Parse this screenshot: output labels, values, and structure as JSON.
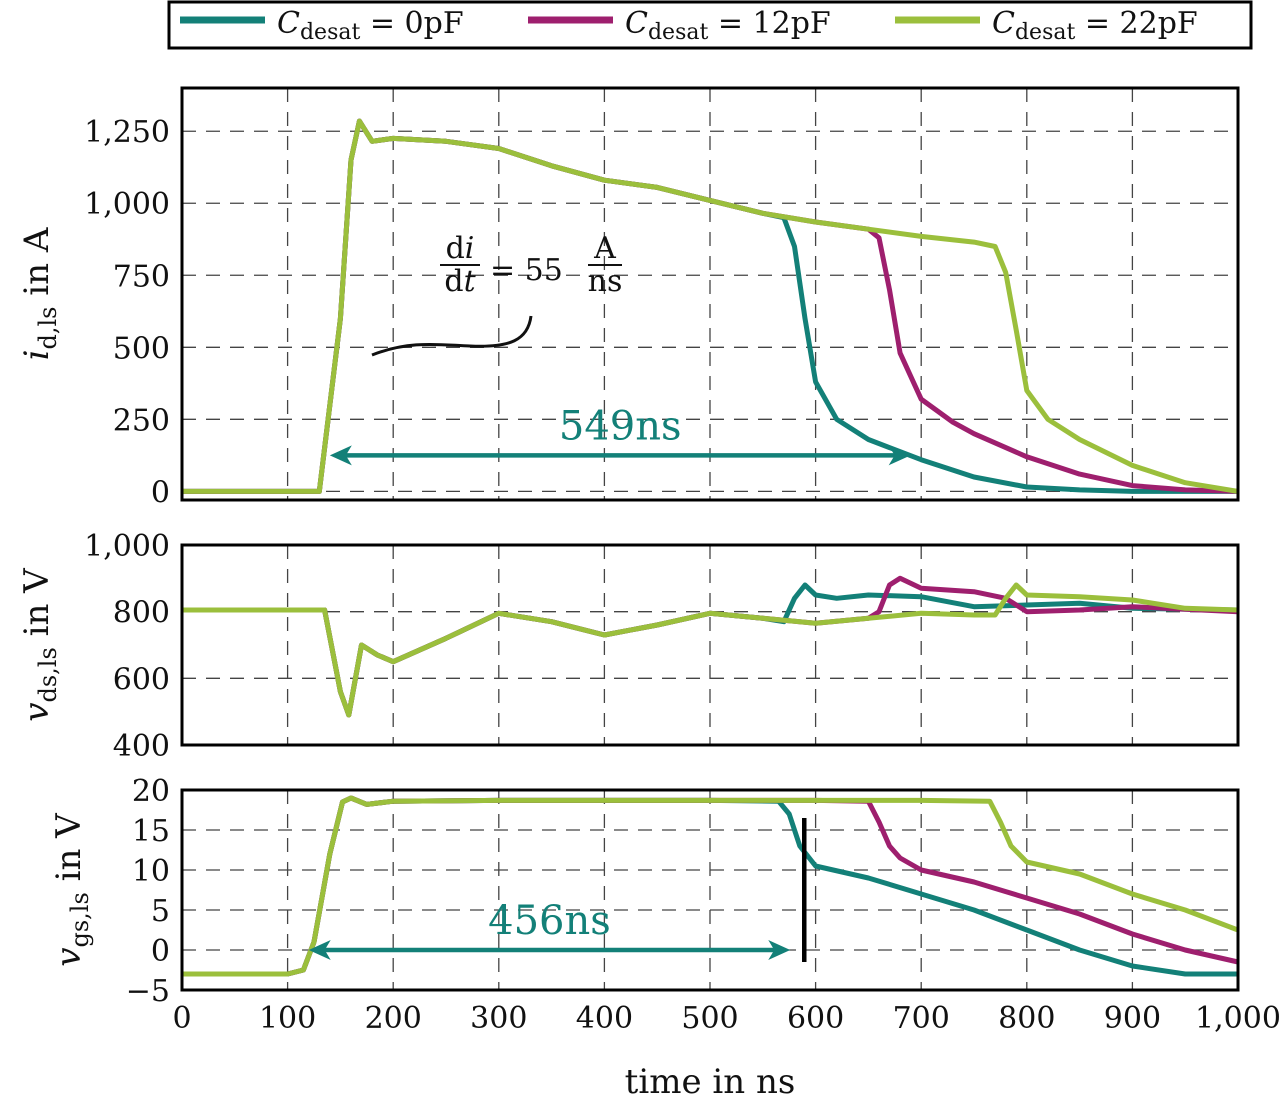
{
  "chart_data": {
    "type": "line",
    "legend": {
      "placement": "top",
      "entries": [
        {
          "label_main": "C",
          "label_sub": "desat",
          "label_rest": " = 0pF",
          "color": "#138078"
        },
        {
          "label_main": "C",
          "label_sub": "desat",
          "label_rest": " = 12pF",
          "color": "#9E1F6E"
        },
        {
          "label_main": "C",
          "label_sub": "desat",
          "label_rest": " = 22pF",
          "color": "#9BBF3C"
        }
      ]
    },
    "xlabel": "time in ns",
    "xlim": [
      0,
      1000
    ],
    "xticks": [
      0,
      100,
      200,
      300,
      400,
      500,
      600,
      700,
      800,
      900,
      1000
    ],
    "xtick_labels": [
      "0",
      "100",
      "200",
      "300",
      "400",
      "500",
      "600",
      "700",
      "800",
      "900",
      "1,000"
    ],
    "grid": true,
    "panels": [
      {
        "id": "id",
        "ylabel_main": "i",
        "ylabel_sub": "d,ls",
        "ylabel_rest": " in A",
        "ylim": [
          -30,
          1400
        ],
        "yticks": [
          0,
          250,
          500,
          750,
          1000,
          1250
        ],
        "ytick_labels": [
          "0",
          "250",
          "500",
          "750",
          "1,000",
          "1,250"
        ],
        "series": [
          {
            "name": "Cdesat = 0pF",
            "x": [
              0,
              100,
              130,
              150,
              160,
              168,
              180,
              200,
              250,
              300,
              350,
              400,
              450,
              500,
              550,
              570,
              580,
              590,
              600,
              620,
              650,
              700,
              750,
              800,
              850,
              900,
              1000
            ],
            "y": [
              0,
              0,
              0,
              600,
              1150,
              1285,
              1215,
              1225,
              1215,
              1190,
              1130,
              1080,
              1055,
              1010,
              965,
              950,
              850,
              600,
              380,
              250,
              180,
              110,
              50,
              15,
              5,
              0,
              0
            ]
          },
          {
            "name": "Cdesat = 12pF",
            "x": [
              0,
              100,
              130,
              150,
              160,
              168,
              180,
              200,
              250,
              300,
              350,
              400,
              450,
              500,
              550,
              600,
              650,
              660,
              670,
              680,
              700,
              730,
              750,
              800,
              850,
              900,
              950,
              1000
            ],
            "y": [
              0,
              0,
              0,
              600,
              1150,
              1285,
              1215,
              1225,
              1215,
              1190,
              1130,
              1080,
              1055,
              1010,
              965,
              935,
              910,
              880,
              700,
              480,
              320,
              240,
              200,
              120,
              60,
              20,
              5,
              0
            ]
          },
          {
            "name": "Cdesat = 22pF",
            "x": [
              0,
              100,
              130,
              150,
              160,
              168,
              180,
              200,
              250,
              300,
              350,
              400,
              450,
              500,
              550,
              600,
              650,
              700,
              750,
              770,
              780,
              790,
              800,
              820,
              850,
              900,
              950,
              1000
            ],
            "y": [
              0,
              0,
              0,
              600,
              1150,
              1285,
              1215,
              1225,
              1215,
              1190,
              1130,
              1080,
              1055,
              1010,
              965,
              935,
              910,
              885,
              865,
              850,
              760,
              560,
              350,
              250,
              180,
              90,
              30,
              0
            ]
          }
        ],
        "annotations": {
          "slope_text_num": "d",
          "slope_text_num_italic": "i",
          "slope_text_den": "d",
          "slope_text_den_italic": "t",
          "slope_eq": "= 55",
          "slope_unit_num": "A",
          "slope_unit_den": "ns",
          "duration_label": "549ns",
          "duration_from": 140,
          "duration_to": 690,
          "duration_at_y": 125
        }
      },
      {
        "id": "vds",
        "ylabel_main": "v",
        "ylabel_sub": "ds,ls",
        "ylabel_rest": " in V",
        "ylim": [
          400,
          1000
        ],
        "yticks": [
          400,
          600,
          800,
          1000
        ],
        "ytick_labels": [
          "400",
          "600",
          "800",
          "1,000"
        ],
        "series": [
          {
            "name": "Cdesat = 0pF",
            "x": [
              0,
              100,
              135,
              150,
              158,
              170,
              185,
              200,
              250,
              300,
              350,
              400,
              450,
              500,
              550,
              570,
              580,
              590,
              600,
              620,
              650,
              700,
              750,
              800,
              850,
              900,
              1000
            ],
            "y": [
              805,
              805,
              805,
              560,
              490,
              700,
              670,
              650,
              720,
              795,
              770,
              730,
              760,
              795,
              780,
              770,
              840,
              880,
              850,
              840,
              850,
              845,
              815,
              820,
              825,
              810,
              805
            ]
          },
          {
            "name": "Cdesat = 12pF",
            "x": [
              0,
              100,
              135,
              150,
              158,
              170,
              185,
              200,
              250,
              300,
              350,
              400,
              450,
              500,
              550,
              600,
              650,
              660,
              670,
              680,
              700,
              750,
              780,
              800,
              850,
              900,
              1000
            ],
            "y": [
              805,
              805,
              805,
              560,
              490,
              700,
              670,
              650,
              720,
              795,
              770,
              730,
              760,
              795,
              780,
              765,
              780,
              800,
              880,
              900,
              870,
              860,
              840,
              800,
              805,
              815,
              800
            ]
          },
          {
            "name": "Cdesat = 22pF",
            "x": [
              0,
              100,
              135,
              150,
              158,
              170,
              185,
              200,
              250,
              300,
              350,
              400,
              450,
              500,
              550,
              600,
              650,
              700,
              750,
              770,
              780,
              790,
              800,
              850,
              900,
              950,
              1000
            ],
            "y": [
              805,
              805,
              805,
              560,
              490,
              700,
              670,
              650,
              720,
              795,
              770,
              730,
              760,
              795,
              780,
              765,
              780,
              795,
              790,
              790,
              840,
              880,
              850,
              845,
              835,
              810,
              805
            ]
          }
        ]
      },
      {
        "id": "vgs",
        "ylabel_main": "v",
        "ylabel_sub": "gs,ls",
        "ylabel_rest": " in V",
        "ylim": [
          -5,
          20
        ],
        "yticks": [
          -5,
          0,
          5,
          10,
          15,
          20
        ],
        "ytick_labels": [
          "−5",
          "0",
          "5",
          "10",
          "15",
          "20"
        ],
        "series": [
          {
            "name": "Cdesat = 0pF",
            "x": [
              0,
              100,
              115,
              125,
              140,
              152,
              160,
              175,
              200,
              300,
              400,
              500,
              565,
              575,
              585,
              600,
              650,
              700,
              750,
              800,
              850,
              900,
              950,
              1000
            ],
            "y": [
              -3,
              -3,
              -2.5,
              1,
              12,
              18.5,
              19,
              18.2,
              18.6,
              18.7,
              18.7,
              18.7,
              18.6,
              17,
              13,
              10.5,
              9,
              7,
              5,
              2.5,
              0,
              -2,
              -3,
              -3
            ]
          },
          {
            "name": "Cdesat = 12pF",
            "x": [
              0,
              100,
              115,
              125,
              140,
              152,
              160,
              175,
              200,
              300,
              400,
              500,
              600,
              650,
              660,
              670,
              680,
              700,
              750,
              800,
              850,
              900,
              950,
              1000
            ],
            "y": [
              -3,
              -3,
              -2.5,
              1,
              12,
              18.5,
              19,
              18.2,
              18.6,
              18.7,
              18.7,
              18.7,
              18.7,
              18.6,
              16,
              13,
              11.5,
              10,
              8.5,
              6.5,
              4.5,
              2,
              0,
              -1.5
            ]
          },
          {
            "name": "Cdesat = 22pF",
            "x": [
              0,
              100,
              115,
              125,
              140,
              152,
              160,
              175,
              200,
              300,
              400,
              500,
              600,
              700,
              765,
              775,
              785,
              800,
              850,
              900,
              950,
              1000
            ],
            "y": [
              -3,
              -3,
              -2.5,
              1,
              12,
              18.5,
              19,
              18.2,
              18.6,
              18.7,
              18.7,
              18.7,
              18.7,
              18.7,
              18.6,
              16,
              13,
              11,
              9.5,
              7,
              5,
              2.5
            ]
          }
        ],
        "annotations": {
          "duration_label": "456ns",
          "duration_from": 120,
          "duration_to": 576,
          "duration_at_y": 0,
          "marker_x": 576,
          "marker_y_from": -1.5,
          "marker_y_to": 16.5
        }
      }
    ]
  }
}
